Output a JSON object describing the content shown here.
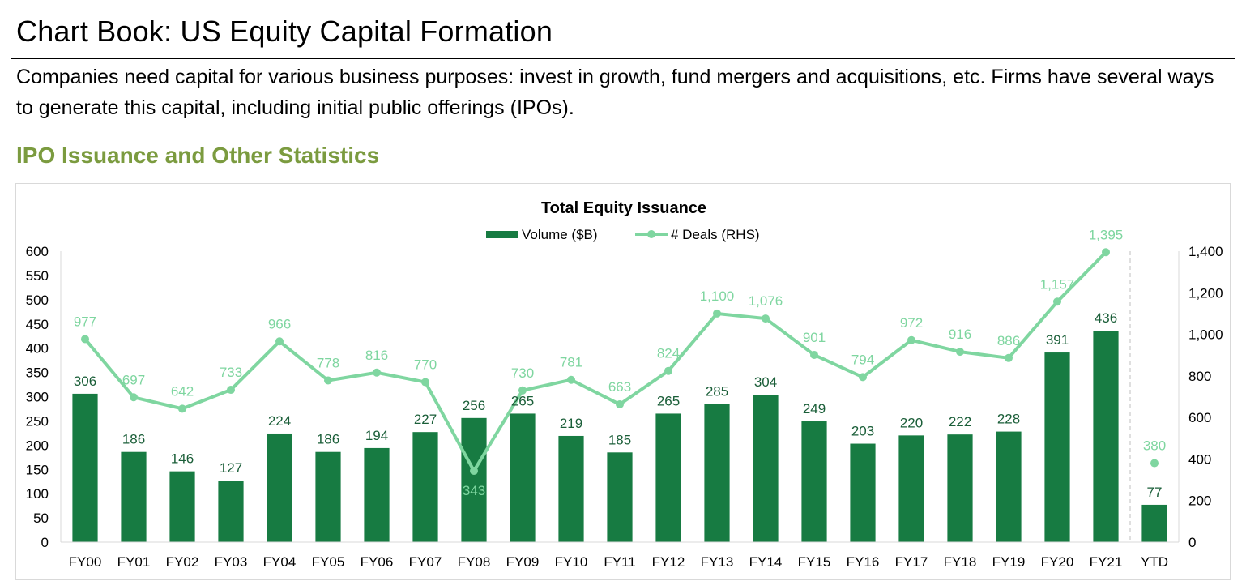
{
  "page": {
    "title": "Chart Book: US Equity Capital Formation",
    "intro": "Companies need capital for various business purposes: invest in growth, fund mergers and acquisitions, etc. Firms have several ways to generate this capital, including initial public offerings (IPOs).",
    "section_heading": "IPO Issuance and Other Statistics",
    "accent_color": "#7b9b3f"
  },
  "chart_data": {
    "type": "bar",
    "title": "Total Equity Issuance",
    "categories": [
      "FY00",
      "FY01",
      "FY02",
      "FY03",
      "FY04",
      "FY05",
      "FY06",
      "FY07",
      "FY08",
      "FY09",
      "FY10",
      "FY11",
      "FY12",
      "FY13",
      "FY14",
      "FY15",
      "FY16",
      "FY17",
      "FY18",
      "FY19",
      "FY20",
      "FY21",
      "YTD"
    ],
    "series": [
      {
        "name": "Volume ($B)",
        "kind": "bar",
        "axis": "left",
        "color": "#177b42",
        "label_color": "#1a5e38",
        "values": [
          306,
          186,
          146,
          127,
          224,
          186,
          194,
          227,
          256,
          265,
          219,
          185,
          265,
          285,
          304,
          249,
          203,
          220,
          222,
          228,
          391,
          436,
          77
        ],
        "labels": [
          "306",
          "186",
          "146",
          "127",
          "224",
          "186",
          "194",
          "227",
          "256",
          "265",
          "219",
          "185",
          "265",
          "285",
          "304",
          "249",
          "203",
          "220",
          "222",
          "228",
          "391",
          "436",
          "77"
        ]
      },
      {
        "name": "# Deals (RHS)",
        "kind": "line",
        "axis": "right",
        "color": "#7fd6a0",
        "values": [
          977,
          697,
          642,
          733,
          966,
          778,
          816,
          770,
          343,
          730,
          781,
          663,
          824,
          1100,
          1076,
          901,
          794,
          972,
          916,
          886,
          1157,
          1395,
          380
        ],
        "labels": [
          "977",
          "697",
          "642",
          "733",
          "966",
          "778",
          "816",
          "770",
          "343",
          "730",
          "781",
          "663",
          "824",
          "1,100",
          "1,076",
          "901",
          "794",
          "972",
          "916",
          "886",
          "1,157",
          "1,395",
          "380"
        ]
      }
    ],
    "y_left": {
      "min": 0,
      "max": 600,
      "ticks": [
        "0",
        "50",
        "100",
        "150",
        "200",
        "250",
        "300",
        "350",
        "400",
        "450",
        "500",
        "550",
        "600"
      ]
    },
    "y_right": {
      "min": 0,
      "max": 1400,
      "ticks": [
        "0",
        "200",
        "400",
        "600",
        "800",
        "1,000",
        "1,200",
        "1,400"
      ]
    },
    "legend_position": "top-center",
    "ytd_separator": "dashed line before YTD",
    "grid": false
  }
}
